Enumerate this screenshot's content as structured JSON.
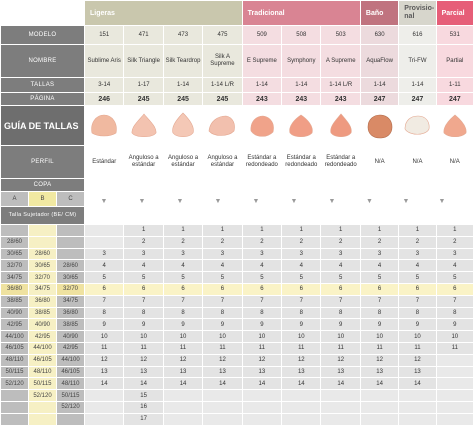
{
  "groups": {
    "ligeras": "Ligeras",
    "tradicional": "Tradicional",
    "bano": "Baño",
    "provisional": "Provisio-nal",
    "parcial": "Parcial"
  },
  "labels": {
    "modelo": "MODELO",
    "nombre": "NOMBRE",
    "tallas": "TALLAS",
    "pagina": "PÁGINA",
    "guia": "GUÍA DE TALLAS",
    "perfil": "PERFIL",
    "copa": "COPA",
    "cup_a": "A",
    "cup_b": "B",
    "cup_c": "C",
    "talla_sujetador": "Talla Sujetador (BE/ CM)"
  },
  "products": [
    {
      "modelo": "151",
      "nombre": "Sublime Aris",
      "tallas": "3-14",
      "pagina": "246",
      "perfil": "Estándar",
      "color": "#f0b9a0"
    },
    {
      "modelo": "471",
      "nombre": "Silk Triangle",
      "tallas": "1-17",
      "pagina": "245",
      "perfil": "Anguloso a estándar",
      "color": "#f3c3b0"
    },
    {
      "modelo": "473",
      "nombre": "Silk Teardrop",
      "tallas": "1-14",
      "pagina": "245",
      "perfil": "Anguloso a estándar",
      "color": "#f4c8b6"
    },
    {
      "modelo": "475",
      "nombre": "Silk A Supreme",
      "tallas": "1-14 L/R",
      "pagina": "245",
      "perfil": "Anguloso a estándar",
      "color": "#f2c0ae"
    },
    {
      "modelo": "509",
      "nombre": "E Supreme",
      "tallas": "1-14",
      "pagina": "243",
      "perfil": "Estándar a redondeado",
      "color": "#f0a38a"
    },
    {
      "modelo": "508",
      "nombre": "Symphony",
      "tallas": "1-14",
      "pagina": "243",
      "perfil": "Estándar a redondeado",
      "color": "#f09e86"
    },
    {
      "modelo": "503",
      "nombre": "A Supreme",
      "tallas": "1-14 L/R",
      "pagina": "243",
      "perfil": "Estándar a redondeado",
      "color": "#ee9a80"
    },
    {
      "modelo": "630",
      "nombre": "AquaFlow",
      "tallas": "1-14",
      "pagina": "247",
      "perfil": "N/A",
      "color": "#d98a66"
    },
    {
      "modelo": "616",
      "nombre": "Tri-FW",
      "tallas": "1-14",
      "pagina": "247",
      "perfil": "N/A",
      "color": "#f1ebe2"
    },
    {
      "modelo": "531",
      "nombre": "Partial",
      "tallas": "1-11",
      "pagina": "247",
      "perfil": "N/A",
      "color": "#f0a88e"
    }
  ],
  "arrow": "▼",
  "rows": [
    {
      "a": "",
      "b": "",
      "c": "",
      "v": [
        "",
        "1",
        "1",
        "1",
        "1",
        "1",
        "1",
        "1",
        "1",
        "1"
      ]
    },
    {
      "a": "28/60",
      "b": "",
      "c": "",
      "v": [
        "",
        "2",
        "2",
        "2",
        "2",
        "2",
        "2",
        "2",
        "2",
        "2"
      ]
    },
    {
      "a": "30/65",
      "b": "28/60",
      "c": "",
      "v": [
        "3",
        "3",
        "3",
        "3",
        "3",
        "3",
        "3",
        "3",
        "3",
        "3"
      ]
    },
    {
      "a": "32/70",
      "b": "30/65",
      "c": "28/60",
      "v": [
        "4",
        "4",
        "4",
        "4",
        "4",
        "4",
        "4",
        "4",
        "4",
        "4"
      ]
    },
    {
      "a": "34/75",
      "b": "32/70",
      "c": "30/65",
      "v": [
        "5",
        "5",
        "5",
        "5",
        "5",
        "5",
        "5",
        "5",
        "5",
        "5"
      ]
    },
    {
      "a": "36/80",
      "b": "34/75",
      "c": "32/70",
      "v": [
        "6",
        "6",
        "6",
        "6",
        "6",
        "6",
        "6",
        "6",
        "6",
        "6"
      ],
      "hl": true
    },
    {
      "a": "38/85",
      "b": "36/80",
      "c": "34/75",
      "v": [
        "7",
        "7",
        "7",
        "7",
        "7",
        "7",
        "7",
        "7",
        "7",
        "7"
      ]
    },
    {
      "a": "40/90",
      "b": "38/85",
      "c": "36/80",
      "v": [
        "8",
        "8",
        "8",
        "8",
        "8",
        "8",
        "8",
        "8",
        "8",
        "8"
      ]
    },
    {
      "a": "42/95",
      "b": "40/90",
      "c": "38/85",
      "v": [
        "9",
        "9",
        "9",
        "9",
        "9",
        "9",
        "9",
        "9",
        "9",
        "9"
      ]
    },
    {
      "a": "44/100",
      "b": "42/95",
      "c": "40/90",
      "v": [
        "10",
        "10",
        "10",
        "10",
        "10",
        "10",
        "10",
        "10",
        "10",
        "10"
      ]
    },
    {
      "a": "46/105",
      "b": "44/100",
      "c": "42/95",
      "v": [
        "11",
        "11",
        "11",
        "11",
        "11",
        "11",
        "11",
        "11",
        "11",
        "11"
      ]
    },
    {
      "a": "48/110",
      "b": "46/105",
      "c": "44/100",
      "v": [
        "12",
        "12",
        "12",
        "12",
        "12",
        "12",
        "12",
        "12",
        "12",
        ""
      ]
    },
    {
      "a": "50/115",
      "b": "48/110",
      "c": "46/105",
      "v": [
        "13",
        "13",
        "13",
        "13",
        "13",
        "13",
        "13",
        "13",
        "13",
        ""
      ]
    },
    {
      "a": "52/120",
      "b": "50/115",
      "c": "48/110",
      "v": [
        "14",
        "14",
        "14",
        "14",
        "14",
        "14",
        "14",
        "14",
        "14",
        ""
      ]
    },
    {
      "a": "",
      "b": "52/120",
      "c": "50/115",
      "v": [
        "",
        "15",
        "",
        "",
        "",
        "",
        "",
        "",
        "",
        ""
      ]
    },
    {
      "a": "",
      "b": "",
      "c": "52/120",
      "v": [
        "",
        "16",
        "",
        "",
        "",
        "",
        "",
        "",
        "",
        ""
      ]
    },
    {
      "a": "",
      "b": "",
      "c": "",
      "v": [
        "",
        "17",
        "",
        "",
        "",
        "",
        "",
        "",
        "",
        ""
      ]
    }
  ]
}
